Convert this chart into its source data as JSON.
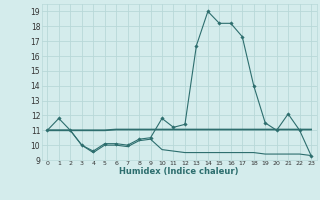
{
  "xlabel": "Humidex (Indice chaleur)",
  "xlim": [
    -0.5,
    23.5
  ],
  "ylim": [
    9,
    19.5
  ],
  "yticks": [
    9,
    10,
    11,
    12,
    13,
    14,
    15,
    16,
    17,
    18,
    19
  ],
  "xticks": [
    0,
    1,
    2,
    3,
    4,
    5,
    6,
    7,
    8,
    9,
    10,
    11,
    12,
    13,
    14,
    15,
    16,
    17,
    18,
    19,
    20,
    21,
    22,
    23
  ],
  "bg_color": "#d4ecec",
  "grid_color": "#b8d8d8",
  "line_color": "#2d6e6e",
  "series1_x": [
    0,
    1,
    2,
    3,
    4,
    5,
    6,
    7,
    8,
    9,
    10,
    11,
    12,
    13,
    14,
    15,
    16,
    17,
    18,
    19,
    20,
    21,
    22,
    23
  ],
  "series1_y": [
    11.0,
    11.8,
    11.0,
    10.0,
    9.6,
    10.1,
    10.1,
    10.0,
    10.4,
    10.5,
    11.8,
    11.2,
    11.4,
    16.7,
    19.0,
    18.2,
    18.2,
    17.3,
    14.0,
    11.5,
    11.0,
    12.1,
    11.0,
    9.3
  ],
  "series2_x": [
    0,
    1,
    2,
    3,
    4,
    5,
    6,
    7,
    8,
    9,
    10,
    11,
    12,
    13,
    14,
    15,
    16,
    17,
    18,
    19,
    20,
    21,
    22,
    23
  ],
  "series2_y": [
    11.0,
    11.0,
    11.0,
    11.0,
    11.0,
    11.0,
    11.05,
    11.05,
    11.05,
    11.05,
    11.05,
    11.05,
    11.05,
    11.05,
    11.05,
    11.05,
    11.05,
    11.05,
    11.05,
    11.05,
    11.05,
    11.05,
    11.05,
    11.05
  ],
  "series3_x": [
    0,
    1,
    2,
    3,
    4,
    5,
    6,
    7,
    8,
    9,
    10,
    11,
    12,
    13,
    14,
    15,
    16,
    17,
    18,
    19,
    20,
    21,
    22,
    23
  ],
  "series3_y": [
    11.0,
    11.0,
    11.0,
    10.0,
    9.5,
    10.0,
    10.0,
    9.9,
    10.3,
    10.4,
    9.7,
    9.6,
    9.5,
    9.5,
    9.5,
    9.5,
    9.5,
    9.5,
    9.5,
    9.4,
    9.4,
    9.4,
    9.4,
    9.3
  ]
}
